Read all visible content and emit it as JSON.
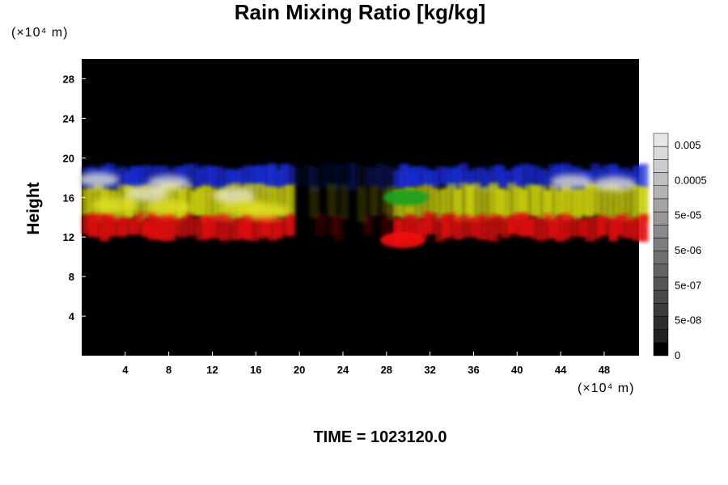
{
  "chart_data": {
    "type": "heatmap",
    "title": "Rain Mixing Ratio [kg/kg]",
    "ylabel": "Height",
    "x_unit": "(×10⁴ m)",
    "y_unit": "(×10⁴ m)",
    "xlim": [
      0,
      51.2
    ],
    "ylim": [
      0,
      30
    ],
    "x_ticks": [
      "4",
      "8",
      "12",
      "16",
      "20",
      "24",
      "28",
      "32",
      "36",
      "40",
      "44",
      "48"
    ],
    "y_ticks": [
      "4",
      "8",
      "12",
      "16",
      "20",
      "24",
      "28"
    ],
    "colorbar": {
      "scale": "log",
      "tick_labels": [
        "0.005",
        "0.0005",
        "5e-05",
        "5e-06",
        "5e-07",
        "5e-08",
        "0"
      ]
    },
    "background_color": "#000000",
    "layers": [
      {
        "color": "#1a2ad0",
        "y_range": [
          16.5,
          19.5
        ]
      },
      {
        "color": "#c8cc10",
        "y_range": [
          13.5,
          17.5
        ]
      },
      {
        "color": "#e01010",
        "y_range": [
          11.5,
          14.5
        ]
      }
    ],
    "features": [
      {
        "color": "#f01010",
        "x_center": 29.5,
        "y_center": 11.7
      },
      {
        "color": "#20a020",
        "x_center": 29.8,
        "y_center": 16.0
      }
    ]
  },
  "footer": "TIME = 1023120.0"
}
